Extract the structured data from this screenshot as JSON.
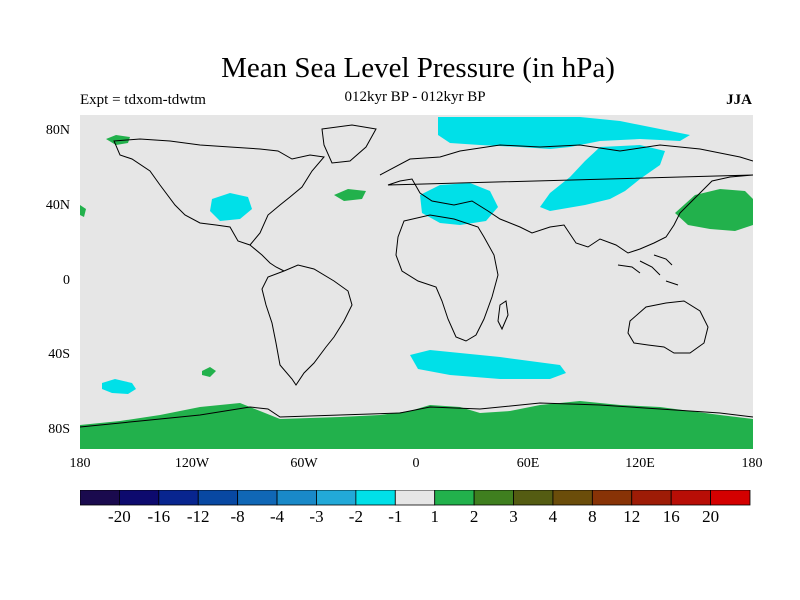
{
  "header": {
    "title": "Mean Sea Level Pressure (in hPa)",
    "subtitle": "012kyr BP - 012kyr BP",
    "experiment": "Expt = tdxom-tdwtm",
    "season": "JJA"
  },
  "axes": {
    "lat_labels": [
      "80N",
      "40N",
      "0",
      "40S",
      "80S"
    ],
    "lat_values": [
      80,
      40,
      0,
      -40,
      -80
    ],
    "lon_labels": [
      "180",
      "120W",
      "60W",
      "0",
      "60E",
      "120E",
      "180"
    ],
    "lon_values": [
      -180,
      -120,
      -60,
      0,
      60,
      120,
      180
    ],
    "lat_range": [
      -90,
      90
    ],
    "lon_range": [
      -180,
      180
    ]
  },
  "colorbar": {
    "colors": [
      "#1a0a4e",
      "#0d0a6e",
      "#08258f",
      "#0848a2",
      "#1067b6",
      "#1989c8",
      "#22a9d8",
      "#00e0e8",
      "#e6e6e6",
      "#22b14c",
      "#3f7f1f",
      "#545c12",
      "#6b4d0a",
      "#883306",
      "#9e1c06",
      "#b80e06",
      "#d40000"
    ],
    "labels": [
      "-20",
      "-16",
      "-12",
      "-8",
      "-4",
      "-3",
      "-2",
      "-1",
      "1",
      "2",
      "3",
      "4",
      "8",
      "12",
      "16",
      "20"
    ]
  },
  "map_style": {
    "background": "#e6e6e6",
    "negative_fill": "#00e0e8",
    "positive_fill": "#22b14c",
    "coast": "#000000"
  }
}
